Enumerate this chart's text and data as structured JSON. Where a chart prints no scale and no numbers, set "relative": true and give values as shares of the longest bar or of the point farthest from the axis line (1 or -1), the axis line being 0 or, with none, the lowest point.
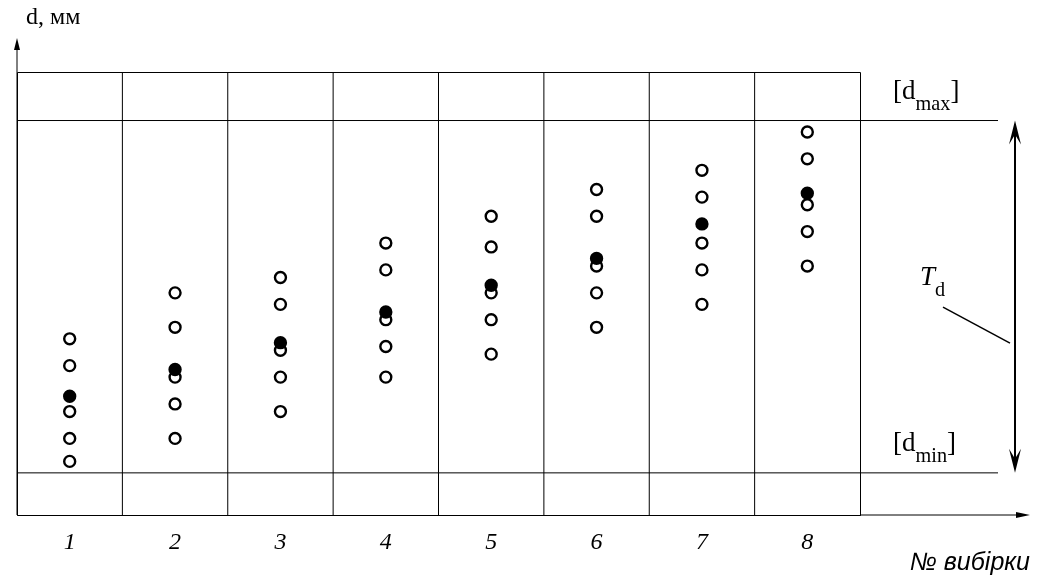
{
  "chart_data": {
    "type": "scatter",
    "relative": true,
    "xlabel": "№ вибірки",
    "ylabel": "d, мм",
    "categories": [
      "1",
      "2",
      "3",
      "4",
      "5",
      "6",
      "7",
      "8"
    ],
    "series": [
      {
        "color": "#ffffff",
        "x": [
          "1",
          "1",
          "1",
          "1",
          "1",
          "2",
          "2",
          "2",
          "2",
          "2",
          "3",
          "3",
          "3",
          "3",
          "3",
          "4",
          "4",
          "4",
          "4",
          "4",
          "5",
          "5",
          "5",
          "5",
          "5",
          "6",
          "6",
          "6",
          "6",
          "6",
          "7",
          "7",
          "7",
          "7",
          "7",
          "8",
          "8",
          "8",
          "8",
          "8"
        ],
        "values": [
          0.46,
          0.39,
          0.27,
          0.2,
          0.14,
          0.58,
          0.49,
          0.36,
          0.29,
          0.2,
          0.62,
          0.55,
          0.43,
          0.36,
          0.27,
          0.71,
          0.64,
          0.51,
          0.44,
          0.36,
          0.78,
          0.7,
          0.58,
          0.51,
          0.42,
          0.85,
          0.78,
          0.65,
          0.58,
          0.49,
          0.9,
          0.83,
          0.71,
          0.64,
          0.55,
          1.0,
          0.93,
          0.81,
          0.74,
          0.65
        ]
      },
      {
        "color": "#000000",
        "x": [
          "1",
          "2",
          "3",
          "4",
          "5",
          "6",
          "7",
          "8"
        ],
        "values": [
          0.31,
          0.38,
          0.45,
          0.53,
          0.6,
          0.67,
          0.76,
          0.84
        ]
      }
    ],
    "ref_lines": [
      {
        "axis": "y",
        "value": 1.03,
        "label": "[d$_{max}$]"
      },
      {
        "axis": "y",
        "value": 0.11,
        "label": "[d$_{min}$]"
      }
    ],
    "annotations": [
      "T$_{d}$"
    ],
    "grid": "x",
    "marker": "circle"
  }
}
